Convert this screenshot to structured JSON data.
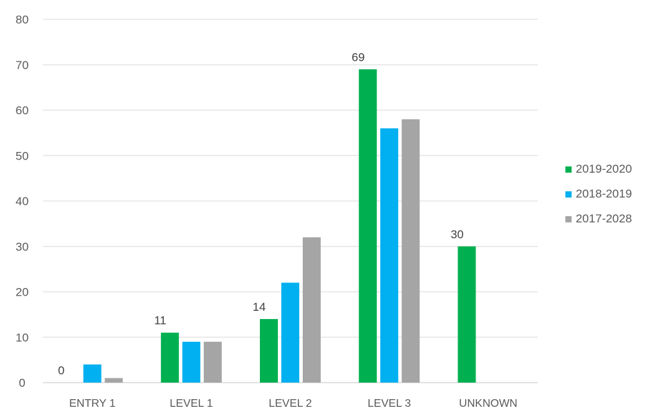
{
  "chart_data": {
    "type": "bar",
    "categories": [
      "ENTRY 1",
      "LEVEL 1",
      "LEVEL 2",
      "LEVEL 3",
      "UNKNOWN"
    ],
    "series": [
      {
        "name": "2019-2020",
        "color": "#00B050",
        "values": [
          0,
          11,
          14,
          69,
          30
        ],
        "labels": [
          "0",
          "11",
          "14",
          "69",
          "30"
        ]
      },
      {
        "name": "2018-2019",
        "color": "#00B0F0",
        "values": [
          4,
          9,
          22,
          56,
          0
        ]
      },
      {
        "name": "2017-2028",
        "color": "#A5A5A5",
        "values": [
          1,
          9,
          32,
          58,
          0
        ]
      }
    ],
    "ylim": [
      0,
      80
    ],
    "yticks": [
      "0",
      "10",
      "20",
      "30",
      "40",
      "50",
      "60",
      "70",
      "80"
    ],
    "grid": true,
    "legend_position": "right"
  }
}
